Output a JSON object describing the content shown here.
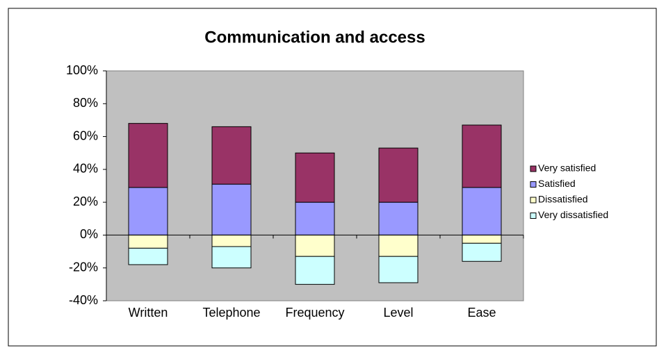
{
  "chart_data": {
    "type": "bar",
    "stacked": true,
    "title": "Communication and access",
    "categories": [
      "Written",
      "Telephone",
      "Frequency",
      "Level",
      "Ease"
    ],
    "series": [
      {
        "name": "Very satisfied",
        "color": "#993366",
        "values": [
          39,
          35,
          30,
          33,
          38
        ]
      },
      {
        "name": "Satisfied",
        "color": "#9999ff",
        "values": [
          29,
          31,
          20,
          20,
          29
        ]
      },
      {
        "name": "Dissatisfied",
        "color": "#ffffcc",
        "values": [
          -8,
          -7,
          -13,
          -13,
          -5
        ]
      },
      {
        "name": "Very dissatisfied",
        "color": "#ccffff",
        "values": [
          -10,
          -13,
          -17,
          -16,
          -11
        ]
      }
    ],
    "ylim": [
      -40,
      100
    ],
    "yticks": [
      {
        "value": -40,
        "label": "-40%"
      },
      {
        "value": -20,
        "label": "-20%"
      },
      {
        "value": 0,
        "label": "0%"
      },
      {
        "value": 20,
        "label": "20%"
      },
      {
        "value": 40,
        "label": "40%"
      },
      {
        "value": 60,
        "label": "60%"
      },
      {
        "value": 80,
        "label": "80%"
      },
      {
        "value": 100,
        "label": "100%"
      }
    ],
    "grid": false,
    "legend": "right",
    "plot_background": "#c0c0c0"
  }
}
